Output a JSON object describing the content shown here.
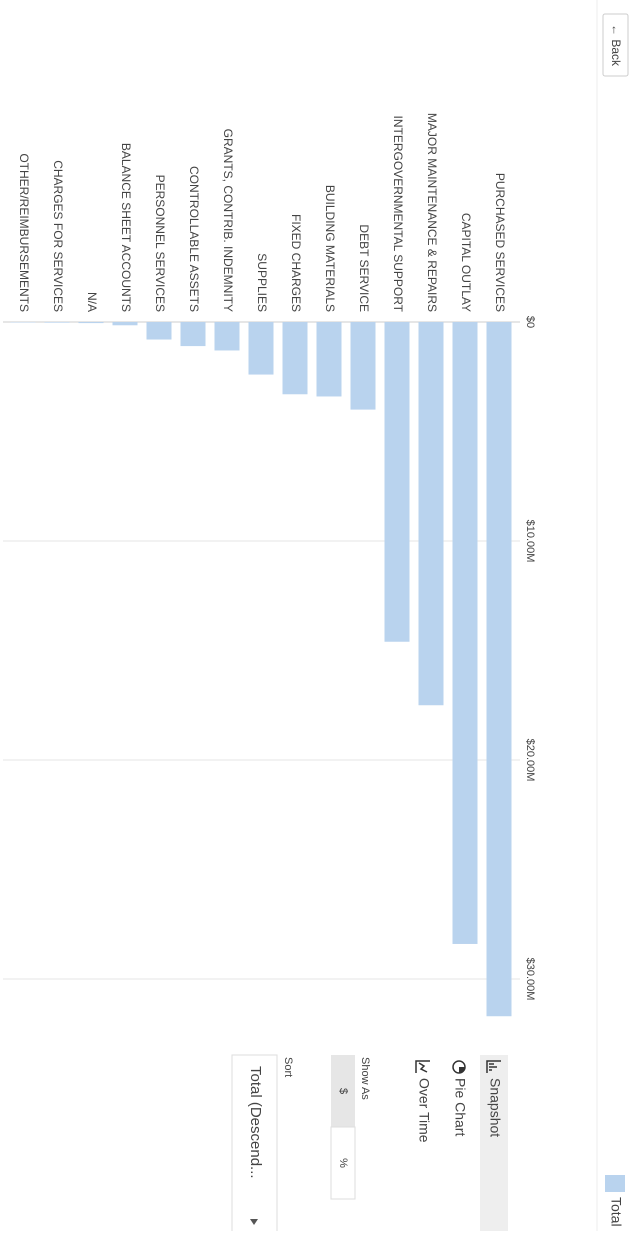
{
  "ui": {
    "back": "← Back",
    "views": [
      "Snapshot",
      "Pie Chart",
      "Over Time"
    ],
    "show_as_label": "Show As",
    "show_as_options": [
      "$",
      "%"
    ],
    "sort_label": "Sort",
    "sort_value": "Total (Descend..."
  },
  "chart_data": {
    "type": "bar",
    "categories": [
      "PURCHASED SERVICES",
      "CAPITAL OUTLAY",
      "MAJOR MAINTENANCE & REPAIRS",
      "INTERGOVERNMENTAL SUPPORT",
      "DEBT SERVICE",
      "BUILDING MATERIALS",
      "FIXED CHARGES",
      "SUPPLIES",
      "GRANTS, CONTRIB. INDEMNITY",
      "CONTROLLABLE ASSETS",
      "PERSONNEL SERVICES",
      "BALANCE SHEET ACCOUNTS",
      "N/A",
      "CHARGES FOR SERVICES",
      "OTHER/REIMBURSEMENTS"
    ],
    "series": [
      {
        "name": "Total",
        "color": "#b9d3ee",
        "values": [
          31700000,
          28400000,
          17500000,
          14600000,
          4000000,
          3400000,
          3300000,
          2400000,
          1300000,
          1100000,
          800000,
          150000,
          50000,
          30000,
          20000
        ]
      }
    ],
    "ylim": [
      0,
      35000000
    ],
    "yticks": [
      {
        "value": 0,
        "label": "$0"
      },
      {
        "value": 10000000,
        "label": "$10.00M"
      },
      {
        "value": 20000000,
        "label": "$20.00M"
      },
      {
        "value": 30000000,
        "label": "$30.00M"
      }
    ],
    "grid": true
  }
}
